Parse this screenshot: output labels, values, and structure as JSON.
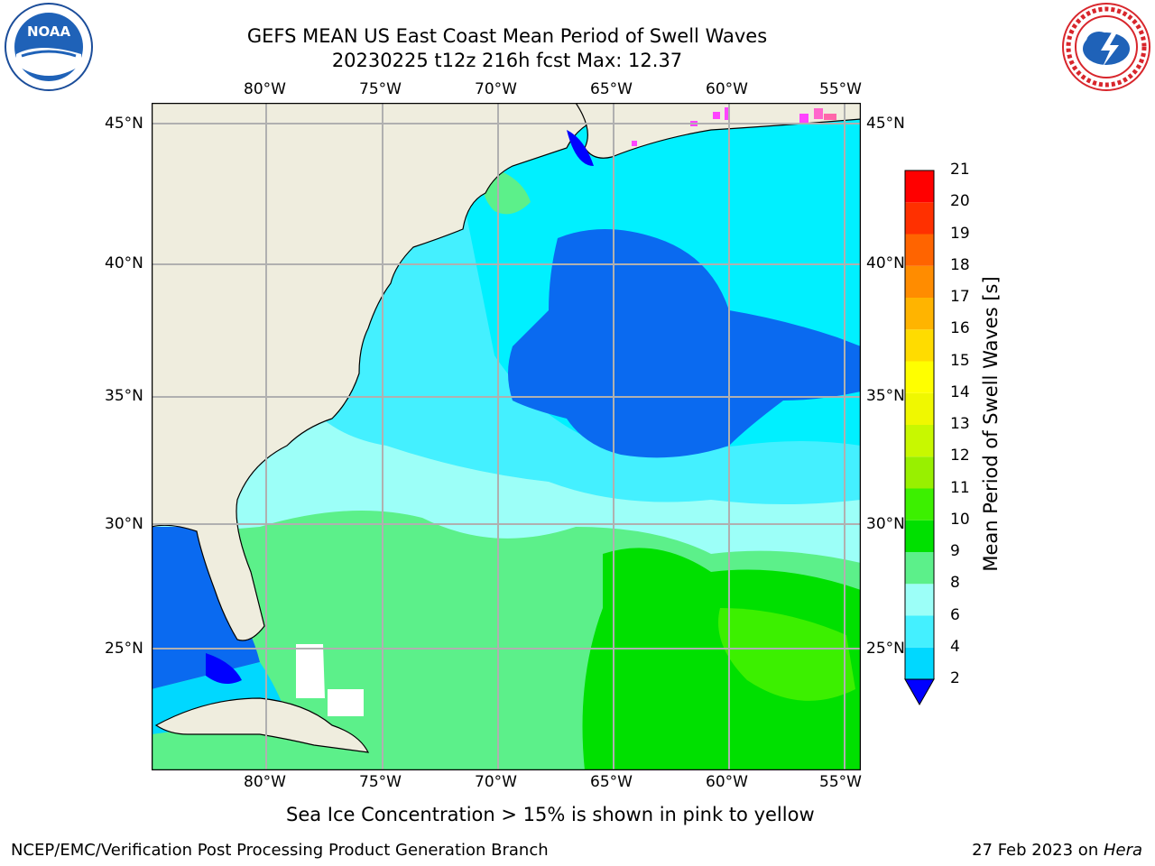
{
  "header": {
    "title_line1": "GEFS MEAN US East Coast Mean Period of Swell Waves",
    "title_line2": "20230225 t12z 216h fcst   Max: 12.37"
  },
  "logos": {
    "left": {
      "name": "noaa-logo",
      "text": "NOAA"
    },
    "right": {
      "name": "nws-logo",
      "text": "NATIONAL WEATHER SERVICE"
    }
  },
  "map": {
    "lon_labels": [
      "80°W",
      "75°W",
      "70°W",
      "65°W",
      "60°W",
      "55°W"
    ],
    "lat_labels": [
      "45°N",
      "40°N",
      "35°N",
      "30°N",
      "25°N"
    ],
    "land_color": "#efedde",
    "coast_color": "#000000",
    "grid_color": "#b0b0b0"
  },
  "colorbar": {
    "label": "Mean Period of Swell Waves [s]",
    "ticks": [
      "2",
      "4",
      "6",
      "8",
      "9",
      "10",
      "11",
      "12",
      "13",
      "14",
      "15",
      "16",
      "17",
      "18",
      "19",
      "20",
      "21"
    ],
    "colors": [
      "#0a6af0",
      "#00d8ff",
      "#44f0ff",
      "#9cfff8",
      "#5cf08a",
      "#00e000",
      "#3cf000",
      "#98f000",
      "#c8f800",
      "#f0f800",
      "#ffff00",
      "#ffdc00",
      "#ffb400",
      "#ff8c00",
      "#ff6400",
      "#ff3000",
      "#ff0000"
    ],
    "under_color": "#0000ff"
  },
  "caption": "Sea Ice Concentration > 15% is shown in pink to yellow",
  "footer": {
    "left": "NCEP/EMC/Verification Post Processing Product Generation Branch",
    "right_date": "27 Feb 2023 on ",
    "right_host": "Hera"
  }
}
